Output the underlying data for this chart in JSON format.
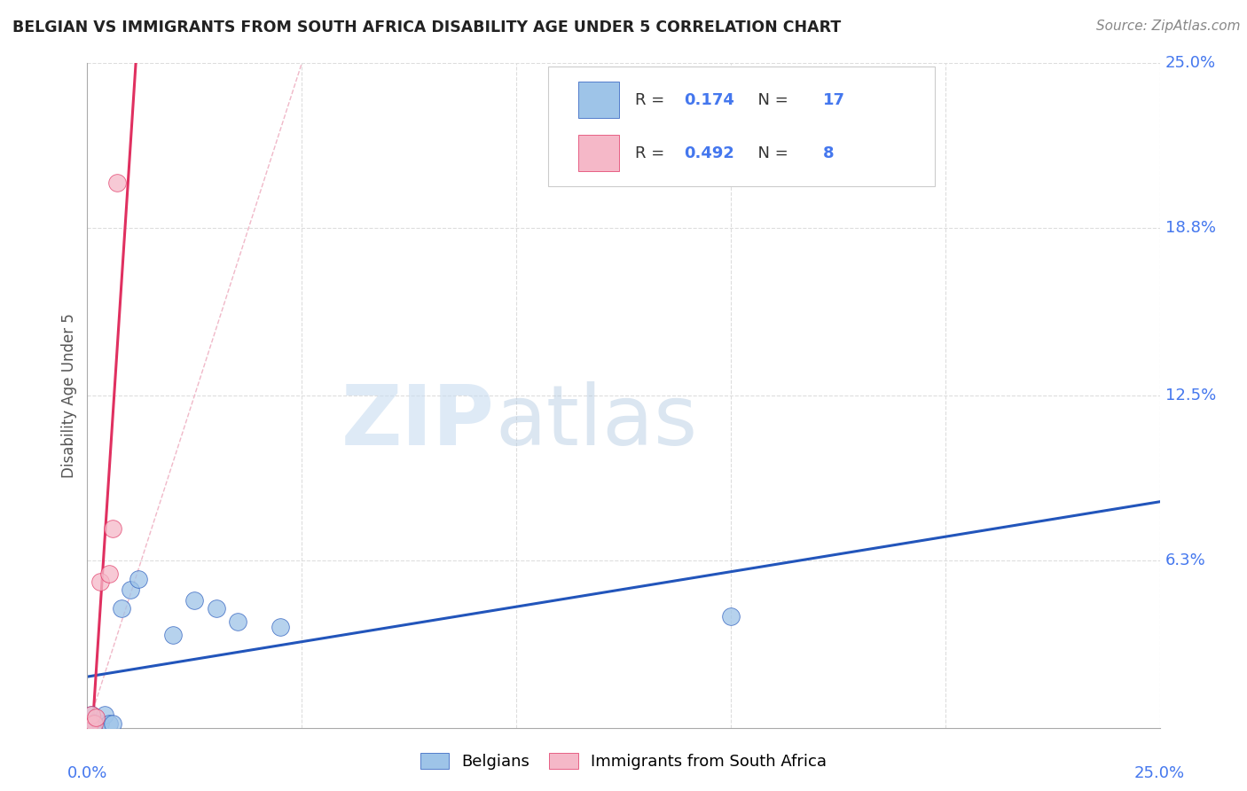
{
  "title": "BELGIAN VS IMMIGRANTS FROM SOUTH AFRICA DISABILITY AGE UNDER 5 CORRELATION CHART",
  "source": "Source: ZipAtlas.com",
  "ylabel": "Disability Age Under 5",
  "xlim": [
    0.0,
    25.0
  ],
  "ylim": [
    0.0,
    25.0
  ],
  "ytick_labels": [
    "6.3%",
    "12.5%",
    "18.8%",
    "25.0%"
  ],
  "ytick_values": [
    6.3,
    12.5,
    18.8,
    25.0
  ],
  "belgians_x": [
    0.05,
    0.1,
    0.15,
    0.2,
    0.3,
    0.4,
    0.5,
    0.6,
    0.8,
    1.0,
    1.2,
    2.0,
    2.5,
    3.0,
    3.5,
    4.5,
    15.0
  ],
  "belgians_y": [
    0.15,
    0.5,
    0.2,
    0.15,
    0.15,
    0.5,
    0.15,
    0.15,
    4.5,
    5.2,
    5.6,
    3.5,
    4.8,
    4.5,
    4.0,
    3.8,
    4.2
  ],
  "immigrants_x": [
    0.05,
    0.1,
    0.15,
    0.2,
    0.3,
    0.5,
    0.6,
    0.7
  ],
  "immigrants_y": [
    0.15,
    0.5,
    0.15,
    0.4,
    5.5,
    5.8,
    7.5,
    20.5
  ],
  "blue_color": "#9EC4E8",
  "pink_color": "#F5B8C8",
  "blue_line_color": "#2255BB",
  "pink_line_color": "#E03060",
  "diag_color": "#F0B8C8",
  "R_blue": "0.174",
  "N_blue": "17",
  "R_pink": "0.492",
  "N_pink": "8",
  "watermark_zip": "ZIP",
  "watermark_atlas": "atlas",
  "legend_belgians": "Belgians",
  "legend_immigrants": "Immigrants from South Africa",
  "background_color": "#FFFFFF",
  "grid_color": "#DDDDDD",
  "axis_label_color": "#4477EE",
  "title_color": "#222222",
  "stat_color": "#4477EE",
  "stat_label_color": "#333333"
}
